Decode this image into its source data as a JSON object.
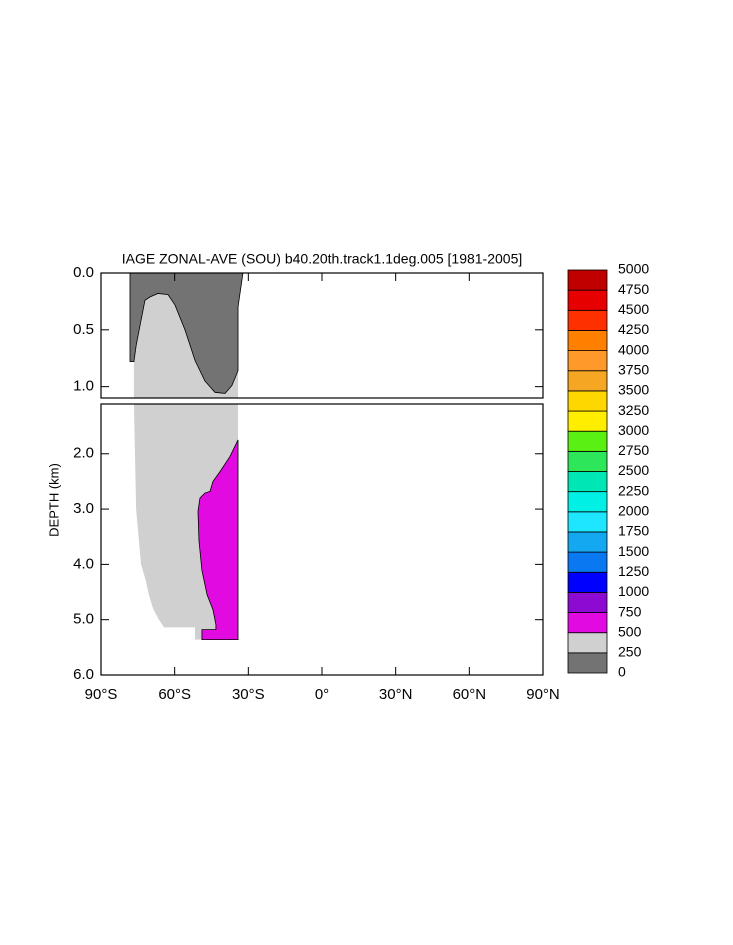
{
  "chart_data": {
    "type": "contour",
    "title": "IAGE ZONAL-AVE (SOU) b40.20th.track1.1deg.005 [1981-2005]",
    "ylabel": "DEPTH (km)",
    "xlim": [
      -90,
      90
    ],
    "xticks": [
      {
        "value": -90,
        "label": "90°S"
      },
      {
        "value": -60,
        "label": "60°S"
      },
      {
        "value": -30,
        "label": "30°S"
      },
      {
        "value": 0,
        "label": "0°"
      },
      {
        "value": 30,
        "label": "30°N"
      },
      {
        "value": 60,
        "label": "60°N"
      },
      {
        "value": 90,
        "label": "90°N"
      }
    ],
    "panels": [
      {
        "ylim": [
          0,
          1.1
        ],
        "yticks": [
          {
            "value": 0,
            "label": "0.0"
          },
          0.5,
          {
            "value": 1,
            "label": "1.0"
          }
        ]
      },
      {
        "ylim": [
          1.1,
          6
        ],
        "yticks": [
          {
            "value": 2,
            "label": "2.0"
          },
          {
            "value": 3,
            "label": "3.0"
          },
          {
            "value": 4,
            "label": "4.0"
          },
          {
            "value": 5,
            "label": "5.0"
          },
          {
            "value": 6,
            "label": "6.0"
          }
        ]
      }
    ],
    "levels": [
      0,
      250,
      500,
      750,
      1000,
      1250,
      1500,
      1750,
      2000,
      2250,
      2500,
      2750,
      3000,
      3250,
      3500,
      3750,
      4000,
      4250,
      4500,
      4750,
      5000
    ],
    "colors": [
      "#737373",
      "#d0d0d0",
      "#e10ae1",
      "#8c0ad2",
      "#0000ff",
      "#0a78f0",
      "#14a8f0",
      "#1ee6ff",
      "#00f0e6",
      "#00e6b4",
      "#2ee65a",
      "#5af014",
      "#ffee00",
      "#ffd700",
      "#f5a623",
      "#ff9a2a",
      "#ff8000",
      "#ff3000",
      "#e60000",
      "#c00000"
    ],
    "regions": [
      {
        "level": 250,
        "lat": [
          -78.2,
          -32.2,
          -34.2,
          -34.2,
          -51.7,
          -51.7,
          -64.3,
          -66.4,
          -68.8,
          -70.5,
          -71.7,
          -73.7,
          -74.5,
          -75.7,
          -76.6,
          -76.6,
          -78.2
        ],
        "depth": [
          0,
          0,
          0.3,
          5.36,
          5.36,
          5.14,
          5.14,
          5.0,
          4.8,
          4.55,
          4.3,
          4.0,
          3.6,
          3.0,
          1.1,
          0.78,
          0.78
        ]
      },
      {
        "level": 0,
        "lat": [
          -78.2,
          -32.2,
          -34.2,
          -34.2,
          -36.7,
          -39.5,
          -43.6,
          -47.7,
          -51.7,
          -55.8,
          -59.9,
          -62.7,
          -66.8,
          -70.0,
          -72.1,
          -74.1,
          -75.7,
          -76.6,
          -78.2
        ],
        "depth": [
          0,
          0,
          0.3,
          0.86,
          0.99,
          1.06,
          1.05,
          0.95,
          0.77,
          0.5,
          0.28,
          0.19,
          0.18,
          0.21,
          0.24,
          0.46,
          0.64,
          0.78,
          0.78
        ]
      },
      {
        "level": 500,
        "lat": [
          -34.2,
          -37.5,
          -41.5,
          -44.4,
          -45.6,
          -47.7,
          -49.7,
          -50.5,
          -50.1,
          -48.9,
          -46.8,
          -44.4,
          -43.2,
          -43.2,
          -48.9,
          -48.9,
          -34.2
        ],
        "depth": [
          1.75,
          2.05,
          2.32,
          2.5,
          2.68,
          2.71,
          2.8,
          3.04,
          3.57,
          4.11,
          4.55,
          4.82,
          5.09,
          5.18,
          5.18,
          5.36,
          5.36
        ]
      }
    ]
  }
}
